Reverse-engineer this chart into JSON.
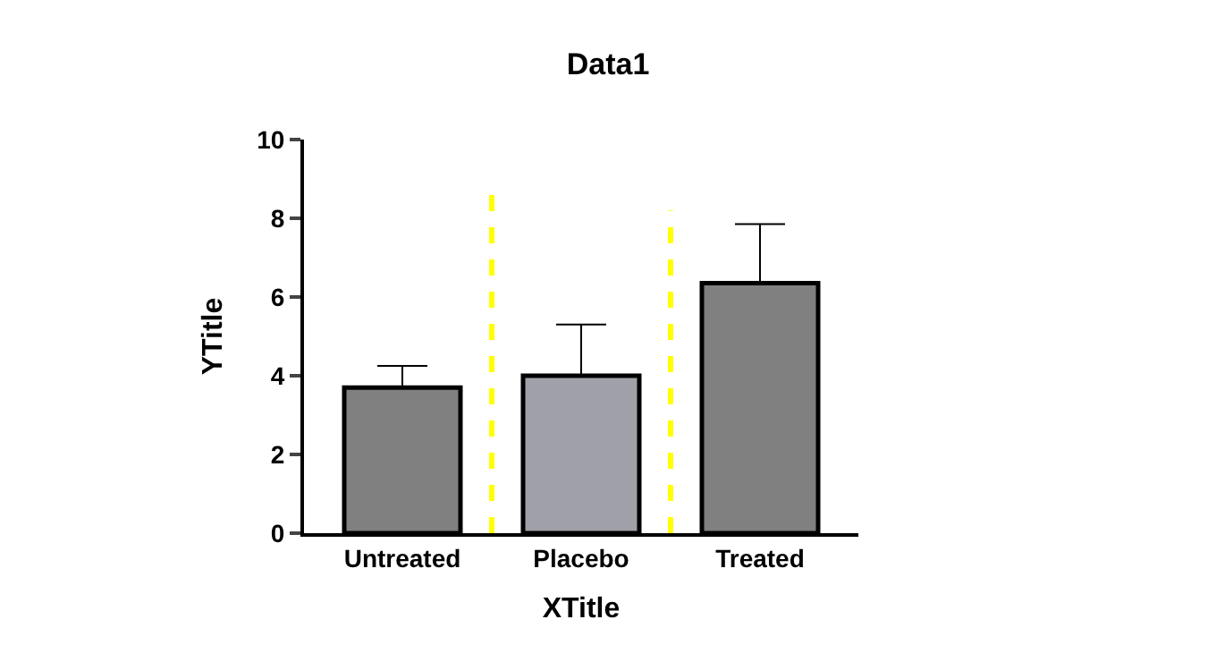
{
  "chart_data": {
    "type": "bar",
    "title": "Data1",
    "xlabel": "XTitle",
    "ylabel": "YTitle",
    "categories": [
      "Untreated",
      "Placebo",
      "Treated"
    ],
    "values": [
      3.7,
      4.0,
      6.35
    ],
    "colors": [
      "#808080",
      "#a0a0a8",
      "#808080"
    ],
    "errors": [
      [
        3.7,
        4.25
      ],
      [
        4.0,
        5.3
      ],
      [
        6.35,
        7.85
      ]
    ],
    "ylim": [
      0,
      10
    ],
    "yticks": [
      0,
      2,
      4,
      6,
      8,
      10
    ]
  }
}
